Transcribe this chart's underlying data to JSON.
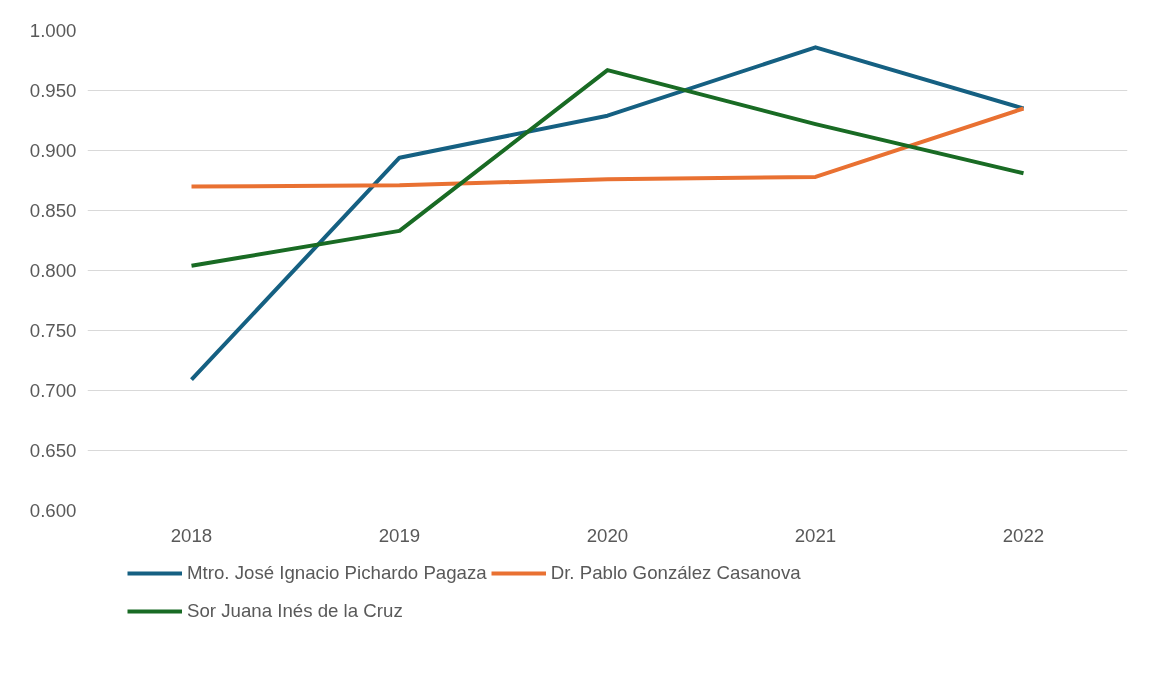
{
  "chart_data": {
    "type": "line",
    "categories": [
      "2018",
      "2019",
      "2020",
      "2021",
      "2022"
    ],
    "series": [
      {
        "name": "Mtro. José Ignacio Pichardo Pagaza",
        "color": "#156082",
        "values": [
          0.709,
          0.894,
          0.929,
          0.986,
          0.935
        ]
      },
      {
        "name": "Dr. Pablo González Casanova",
        "color": "#e97132",
        "values": [
          0.87,
          0.871,
          0.876,
          0.878,
          0.935
        ]
      },
      {
        "name": "Sor Juana Inés de la Cruz",
        "color": "#196b24",
        "values": [
          0.804,
          0.833,
          0.967,
          0.922,
          0.881
        ]
      }
    ],
    "ylim": [
      0.6,
      1.0
    ],
    "yticks": [
      {
        "value": 0.6,
        "label": "0.600"
      },
      {
        "value": 0.65,
        "label": "0.650"
      },
      {
        "value": 0.7,
        "label": "0.700"
      },
      {
        "value": 0.75,
        "label": "0.750"
      },
      {
        "value": 0.8,
        "label": "0.800"
      },
      {
        "value": 0.85,
        "label": "0.850"
      },
      {
        "value": 0.9,
        "label": "0.900"
      },
      {
        "value": 0.95,
        "label": "0.950"
      },
      {
        "value": 1.0,
        "label": "1.000"
      }
    ],
    "grid": "y",
    "legend": "bottom",
    "marker": "none",
    "line_style": "solid"
  }
}
